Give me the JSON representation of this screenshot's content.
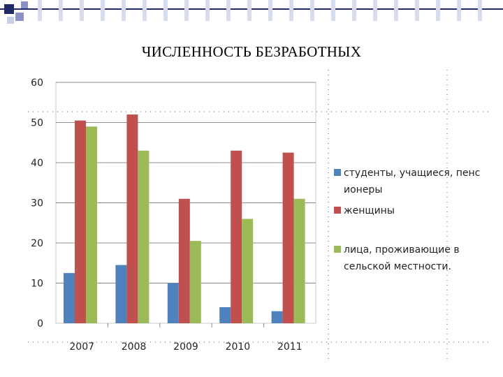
{
  "slide": {
    "title": "ЧИСЛЕННОСТЬ БЕЗРАБОТНЫХ"
  },
  "colors": {
    "accent": "#1f2a6b",
    "series": [
      "#4f81bd",
      "#c0504d",
      "#9bbb59"
    ]
  },
  "chart_data": {
    "type": "bar",
    "categories": [
      "2007",
      "2008",
      "2009",
      "2010",
      "2011"
    ],
    "series": [
      {
        "name": "студенты, учащиеся, пенсионеры",
        "values": [
          12.5,
          14.5,
          10,
          4,
          3
        ]
      },
      {
        "name": "женщины",
        "values": [
          50.5,
          52,
          31,
          43,
          42.5
        ]
      },
      {
        "name": "лица, проживающие в сельской местности.",
        "values": [
          49,
          43,
          20.5,
          26,
          31
        ]
      }
    ],
    "yticks": [
      "0",
      "10",
      "20",
      "30",
      "40",
      "50",
      "60"
    ],
    "ylim": [
      0,
      60
    ],
    "grid": true,
    "legend": "right",
    "legend_lines": [
      [
        "студенты, учащиеся, пенс",
        "ионеры"
      ],
      [
        "женщины"
      ],
      [
        "лица, проживающие в",
        "сельской местности."
      ]
    ]
  }
}
